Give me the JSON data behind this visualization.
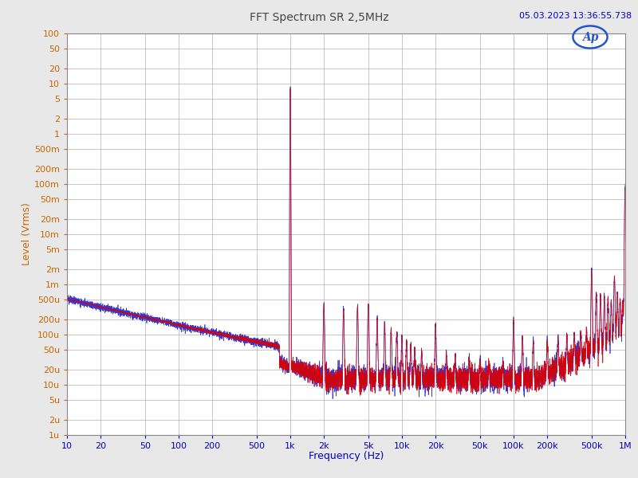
{
  "title": "FFT Spectrum SR 2,5MHz",
  "timestamp": "05.03.2023 13:36:55.738",
  "xlabel": "Frequency (Hz)",
  "ylabel": "Level (Vrms)",
  "background_color": "#e8e8e8",
  "plot_bg_color": "#ffffff",
  "grid_color": "#b0b0b0",
  "color_red": "#dd0000",
  "color_blue": "#2222cc",
  "xmin": 10,
  "xmax": 1000000,
  "ymin": 1e-06,
  "ymax": 100,
  "yticks": [
    100,
    50,
    20,
    10,
    5,
    2,
    1,
    0.5,
    0.2,
    0.1,
    0.05,
    0.02,
    0.01,
    0.005,
    0.002,
    0.001,
    0.0005,
    0.0002,
    0.0001,
    5e-05,
    2e-05,
    1e-05,
    5e-06,
    2e-06,
    1e-06
  ],
  "ytick_labels": [
    "100",
    "50",
    "20",
    "10",
    "5",
    "2",
    "1",
    "500m",
    "200m",
    "100m",
    "50m",
    "20m",
    "10m",
    "5m",
    "2m",
    "1m",
    "500u",
    "200u",
    "100u",
    "50u",
    "20u",
    "10u",
    "5u",
    "2u",
    "1u"
  ],
  "xticks": [
    10,
    20,
    50,
    100,
    200,
    500,
    1000,
    2000,
    5000,
    10000,
    20000,
    50000,
    100000,
    200000,
    500000,
    1000000
  ],
  "xtick_labels": [
    "10",
    "20",
    "50",
    "100",
    "200",
    "500",
    "1k",
    "2k",
    "5k",
    "10k",
    "20k",
    "50k",
    "100k",
    "200k",
    "500k",
    "1M"
  ],
  "title_color": "#444444",
  "timestamp_color": "#0000cc",
  "xlabel_color": "#0000cc",
  "ylabel_color": "#cc6600",
  "xtick_color": "#0000cc",
  "ytick_color": "#cc6600"
}
